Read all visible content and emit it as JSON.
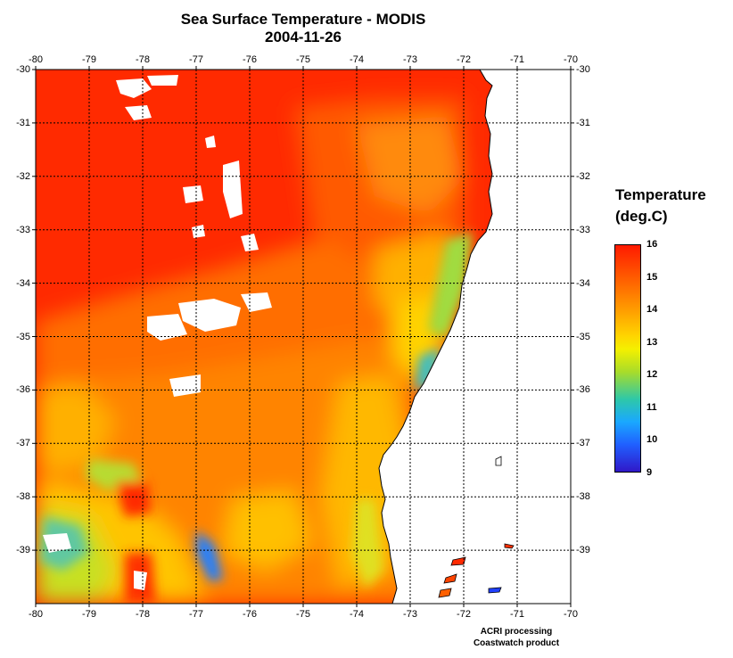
{
  "header": {
    "title": "Sea Surface Temperature - MODIS",
    "date": "2004-11-26"
  },
  "map": {
    "lon_ticks": [
      "-80",
      "-79",
      "-78",
      "-77",
      "-76",
      "-75",
      "-74",
      "-73",
      "-72",
      "-71",
      "-70"
    ],
    "lat_ticks": [
      "-30",
      "-31",
      "-32",
      "-33",
      "-34",
      "-35",
      "-36",
      "-37",
      "-38",
      "-39"
    ]
  },
  "legend": {
    "title_line1": "Temperature",
    "title_line2": "(deg.C)",
    "labels": [
      "16",
      "15",
      "14",
      "13",
      "12",
      "11",
      "10",
      "9"
    ],
    "colors": {
      "high": "#ff1a00",
      "mid": "#ffd400",
      "low": "#3018c8"
    }
  },
  "credit": {
    "line1": "ACRI processing",
    "line2": "Coastwatch product"
  }
}
